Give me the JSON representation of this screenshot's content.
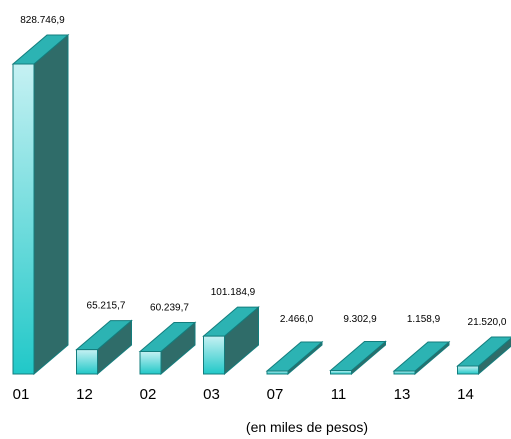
{
  "chart_data": {
    "type": "bar",
    "style": "3d-column",
    "categories": [
      "01",
      "12",
      "02",
      "03",
      "07",
      "11",
      "13",
      "14"
    ],
    "values": [
      828746.9,
      65215.7,
      60239.7,
      101184.9,
      2466.0,
      9302.9,
      1158.9,
      21520.0
    ],
    "data_labels": [
      "828.746,9",
      "65.215,7",
      "60.239,7",
      "101.184,9",
      "2.466,0",
      "9.302,9",
      "1.158,9",
      "21.520,0"
    ],
    "title": "",
    "xlabel": "(en miles de pesos)",
    "ylabel": "",
    "ylim": [
      0,
      828746.9
    ],
    "grid": false,
    "legend": "none",
    "colors": {
      "front_light": "#c6f1f3",
      "front_dark": "#21c8c8",
      "top": "#2cb3b3",
      "side": "#2f6c69",
      "edge": "#137d7d"
    }
  }
}
